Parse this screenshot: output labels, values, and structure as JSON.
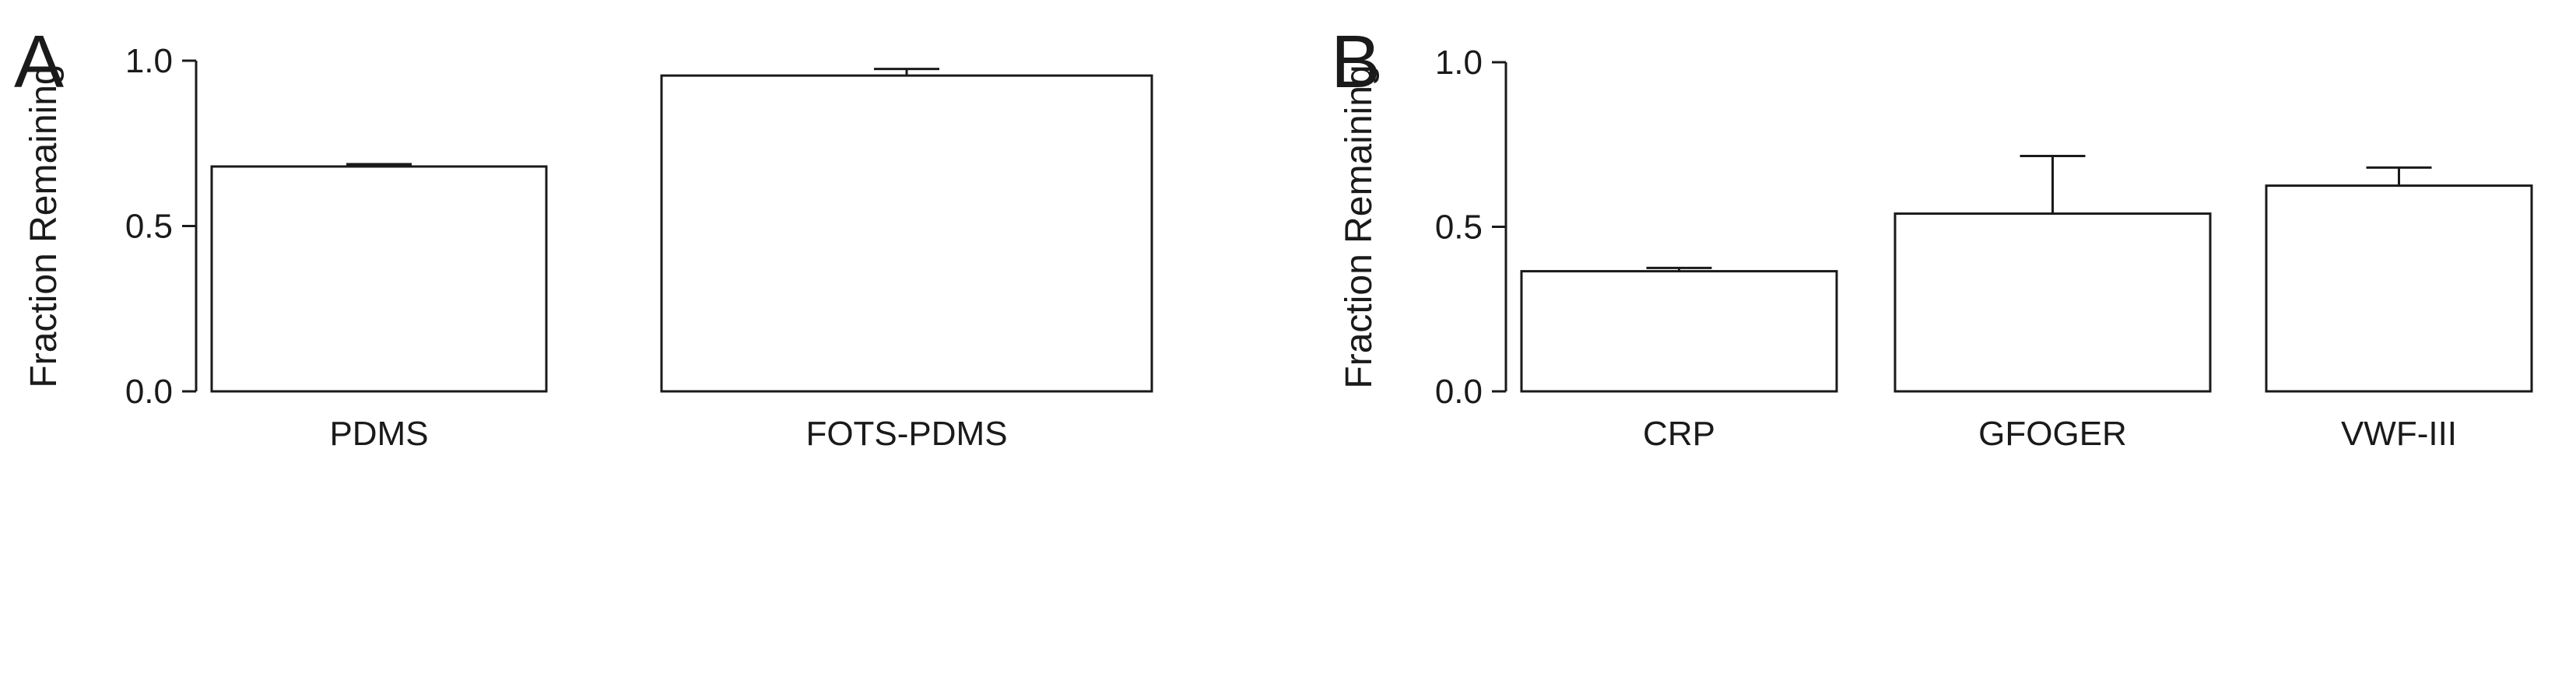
{
  "chart_data": [
    {
      "type": "bar",
      "panel_label": "A",
      "ylabel": "Fraction Remaining",
      "xlabel": "",
      "ylim": [
        0,
        1.0
      ],
      "yticks": [
        0.0,
        0.5,
        1.0
      ],
      "ytick_labels": [
        "0.0",
        "0.5",
        "1.0"
      ],
      "categories": [
        "PDMS",
        "FOTS-PDMS"
      ],
      "values": [
        0.68,
        0.955
      ],
      "errors": [
        0.007,
        0.02
      ],
      "grid": false,
      "bar_color": "#ffffff",
      "edge_color": "#1a1a1a"
    },
    {
      "type": "bar",
      "panel_label": "B",
      "ylabel": "Fraction Remaining",
      "xlabel": "",
      "ylim": [
        0,
        1.0
      ],
      "yticks": [
        0.0,
        0.5,
        1.0
      ],
      "ytick_labels": [
        "0.0",
        "0.5",
        "1.0"
      ],
      "categories": [
        "CRP",
        "GFOGER",
        "VWF-III"
      ],
      "values": [
        0.365,
        0.54,
        0.625
      ],
      "errors": [
        0.01,
        0.175,
        0.055
      ],
      "grid": false,
      "bar_color": "#ffffff",
      "edge_color": "#1a1a1a"
    }
  ]
}
